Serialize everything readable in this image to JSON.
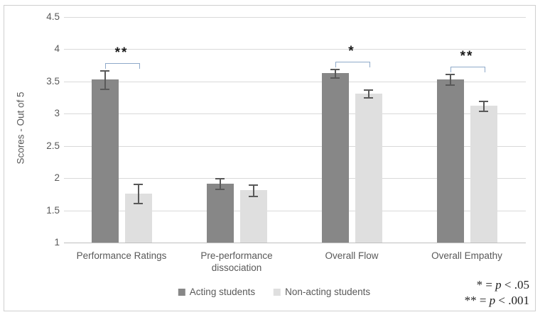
{
  "chart_data": {
    "type": "bar",
    "title": "",
    "xlabel": "",
    "ylabel": "Scores - Out of 5",
    "ylim": [
      1,
      4.5
    ],
    "ytick_step": 0.5,
    "yticks": [
      "4.5",
      "4",
      "3.5",
      "3",
      "2.5",
      "2",
      "1.5",
      "1"
    ],
    "grid": true,
    "legend_position": "bottom",
    "categories": [
      "Performance Ratings",
      "Pre-performance dissociation",
      "Overall Flow",
      "Overall Empathy"
    ],
    "series": [
      {
        "name": "Acting students",
        "color": "#878787",
        "values": [
          3.53,
          1.91,
          3.63,
          3.53
        ],
        "error_low": [
          3.38,
          1.82,
          3.55,
          3.44
        ],
        "error_high": [
          3.68,
          2.0,
          3.7,
          3.62
        ]
      },
      {
        "name": "Non-acting students",
        "color": "#dfdfdf",
        "values": [
          1.76,
          1.81,
          3.31,
          3.12
        ],
        "error_low": [
          1.61,
          1.72,
          3.24,
          3.04
        ],
        "error_high": [
          1.91,
          1.9,
          3.38,
          3.2
        ]
      }
    ],
    "significance": [
      {
        "category": "Performance Ratings",
        "stars": "**"
      },
      {
        "category": "Overall Flow",
        "stars": "*"
      },
      {
        "category": "Overall Empathy",
        "stars": "**"
      }
    ],
    "notes": [
      "* = p < .05",
      "** = p < .001"
    ]
  },
  "colors": {
    "bar_dark": "#878787",
    "bar_light": "#dfdfdf",
    "gridline": "#d9d9d9",
    "baseline": "#bfbfbf",
    "axis_text": "#595959",
    "error_bar": "#595959",
    "bracket_blue": "#8ea9c9",
    "stars": "#1a1a1a",
    "frame_border": "#cfcfcf"
  }
}
